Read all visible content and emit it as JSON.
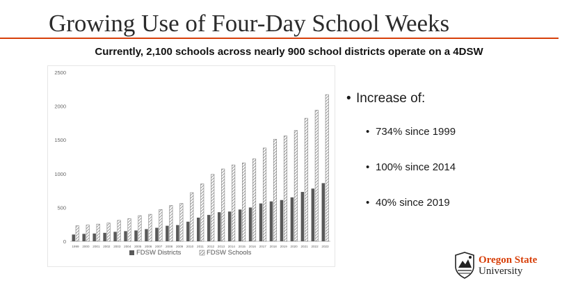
{
  "slide": {
    "title": "Growing Use of Four-Day School Weeks",
    "subtitle": "Currently, 2,100 schools across nearly 900 school districts operate on a 4DSW",
    "accent_color": "#d73f09"
  },
  "bullets": {
    "main": "Increase of:",
    "items": [
      "734% since 1999",
      "100% since 2014",
      "40% since 2019"
    ]
  },
  "logo": {
    "line1": "Oregon State",
    "line2": "University",
    "brand_color": "#d73f09"
  },
  "chart_data": {
    "type": "bar",
    "categories": [
      "1999",
      "2000",
      "2001",
      "2002",
      "2003",
      "2004",
      "2005",
      "2006",
      "2007",
      "2008",
      "2009",
      "2010",
      "2011",
      "2012",
      "2013",
      "2014",
      "2015",
      "2016",
      "2017",
      "2018",
      "2019",
      "2020",
      "2021",
      "2022",
      "2023"
    ],
    "series": [
      {
        "name": "FDSW Districts",
        "values": [
          100,
          110,
          115,
          125,
          140,
          150,
          160,
          180,
          200,
          230,
          240,
          290,
          350,
          390,
          430,
          440,
          470,
          500,
          560,
          590,
          610,
          650,
          730,
          780,
          860
        ],
        "color": "#595959",
        "pattern": "solid"
      },
      {
        "name": "FDSW Schools",
        "values": [
          230,
          240,
          255,
          270,
          310,
          335,
          380,
          400,
          470,
          530,
          560,
          720,
          850,
          990,
          1070,
          1130,
          1160,
          1220,
          1380,
          1510,
          1560,
          1640,
          1820,
          1940,
          2170
        ],
        "color": "#7f7f7f",
        "pattern": "diagonal-hatch"
      }
    ],
    "y_ticks": [
      "0",
      "500",
      "1000",
      "1500",
      "2000",
      "2500"
    ],
    "ylim": [
      0,
      2500
    ],
    "grid": false,
    "legend_position": "bottom-center"
  }
}
